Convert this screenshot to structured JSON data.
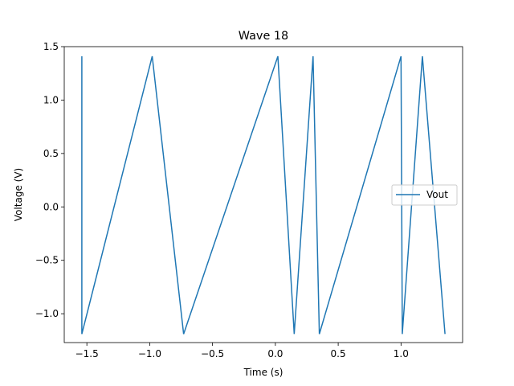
{
  "chart_data": {
    "type": "line",
    "title": "Wave 18",
    "xlabel": "Time (s)",
    "ylabel": "Voltage (V)",
    "xlim": [
      -1.68,
      1.49
    ],
    "ylim": [
      -1.27,
      1.5
    ],
    "xticks": [
      -1.5,
      -1.0,
      -0.5,
      0.0,
      0.5,
      1.0
    ],
    "xtick_labels": [
      "−1.5",
      "−1.0",
      "−0.5",
      "0.0",
      "0.5",
      "1.0"
    ],
    "yticks": [
      -1.0,
      -0.5,
      0.0,
      0.5,
      1.0,
      1.5
    ],
    "ytick_labels": [
      "−1.0",
      "−0.5",
      "0.0",
      "0.5",
      "1.0",
      "1.5"
    ],
    "grid": false,
    "legend_position": "center-right",
    "series": [
      {
        "name": "Vout",
        "color": "#1f77b4",
        "x": [
          -1.54,
          -1.54,
          -0.98,
          -0.73,
          0.02,
          0.15,
          0.3,
          0.35,
          1.0,
          1.01,
          1.17,
          1.35
        ],
        "y": [
          1.41,
          -1.19,
          1.41,
          -1.19,
          1.41,
          -1.19,
          1.41,
          -1.19,
          1.41,
          -1.19,
          1.41,
          -1.19
        ]
      }
    ]
  }
}
